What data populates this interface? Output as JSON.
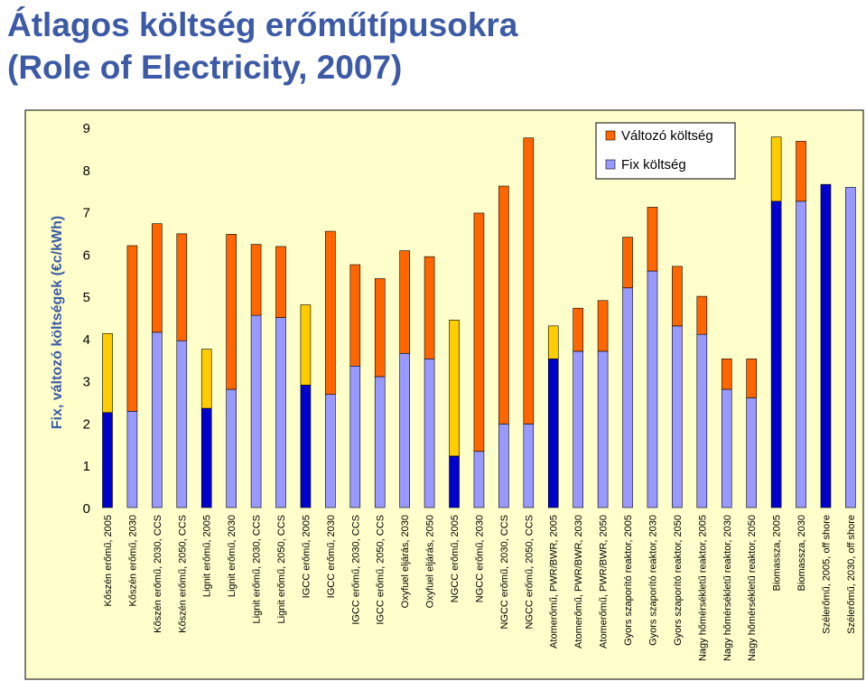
{
  "title_line1": "Átlagos költség erőműtípusokra",
  "title_line2": "(Role of Electricity, 2007)",
  "chart_data": {
    "type": "bar",
    "stacked": true,
    "ylabel": "Fix, változó költségek (€c/kWh)",
    "xlabel": "",
    "ylim": [
      0,
      9
    ],
    "yticks": [
      0,
      1,
      2,
      3,
      4,
      5,
      6,
      7,
      8,
      9
    ],
    "grid": false,
    "legend_position": "top-right",
    "categories": [
      "Kőszén erőmű, 2005",
      "Kőszén erőmű, 2030",
      "Kőszén erőmű, 2030, CCS",
      "Kőszén erőmű, 2050, CCS",
      "Lignit erőmű, 2005",
      "Lignit erőmű, 2030",
      "Lignit erőmű, 2030, CCS",
      "Lignit erőmű, 2050, CCS",
      "IGCC erőmű, 2005",
      "IGCC erőmű, 2030",
      "IGCC erőmű, 2030, CCS",
      "IGCC erőmű, 2050, CCS",
      "Oxyfuel eljárás, 2030",
      "Oxyfuel eljárás, 2050",
      "NGCC erőmű, 2005",
      "NGCC erőmű, 2030",
      "NGCC erőmű, 2030, CCS",
      "NGCC erőmű, 2050, CCS",
      "Atomerőmű, PWR/BWR, 2005",
      "Atomerőmű, PWR/BWR, 2030",
      "Atomerőmű, PWR/BWR, 2050",
      "Gyors szaporító reaktor, 2005",
      "Gyors szaporító reaktor, 2030",
      "Gyors szaporító reaktor, 2050",
      "Nagy hőmérsékletű reaktor, 2005",
      "Nagy hőmérsékletű reaktor, 2030",
      "Nagy hőmérsékletű reaktor, 2050",
      "Biomassza, 2005",
      "Biomassza, 2030",
      "Szélerőmű, 2005, off shore",
      "Szélerőmű, 2030, off shore"
    ],
    "series": [
      {
        "name": "Fix költség",
        "color": "#9999ff",
        "values": [
          2.25,
          2.28,
          4.15,
          3.95,
          2.35,
          2.8,
          4.55,
          4.5,
          2.9,
          2.68,
          3.35,
          3.1,
          3.65,
          3.52,
          1.22,
          1.33,
          1.98,
          1.98,
          3.52,
          3.7,
          3.7,
          5.2,
          5.6,
          4.3,
          4.1,
          2.8,
          2.6,
          7.25,
          7.25,
          7.65,
          7.58
        ]
      },
      {
        "name": "Változó költség",
        "color": "#ff6600",
        "values": [
          1.87,
          3.92,
          2.57,
          2.53,
          1.4,
          3.67,
          1.68,
          1.68,
          1.9,
          3.86,
          2.4,
          2.32,
          2.43,
          2.42,
          3.22,
          5.64,
          5.63,
          6.77,
          0.78,
          1.02,
          1.2,
          1.2,
          1.51,
          1.41,
          0.9,
          0.72,
          0.92,
          1.52,
          1.42,
          0,
          0
        ]
      }
    ],
    "highlight_2005": {
      "fix_color": "#0000cc",
      "variable_color": "#ffcc00",
      "indices": [
        0,
        4,
        8,
        14,
        18,
        27,
        29
      ]
    }
  }
}
